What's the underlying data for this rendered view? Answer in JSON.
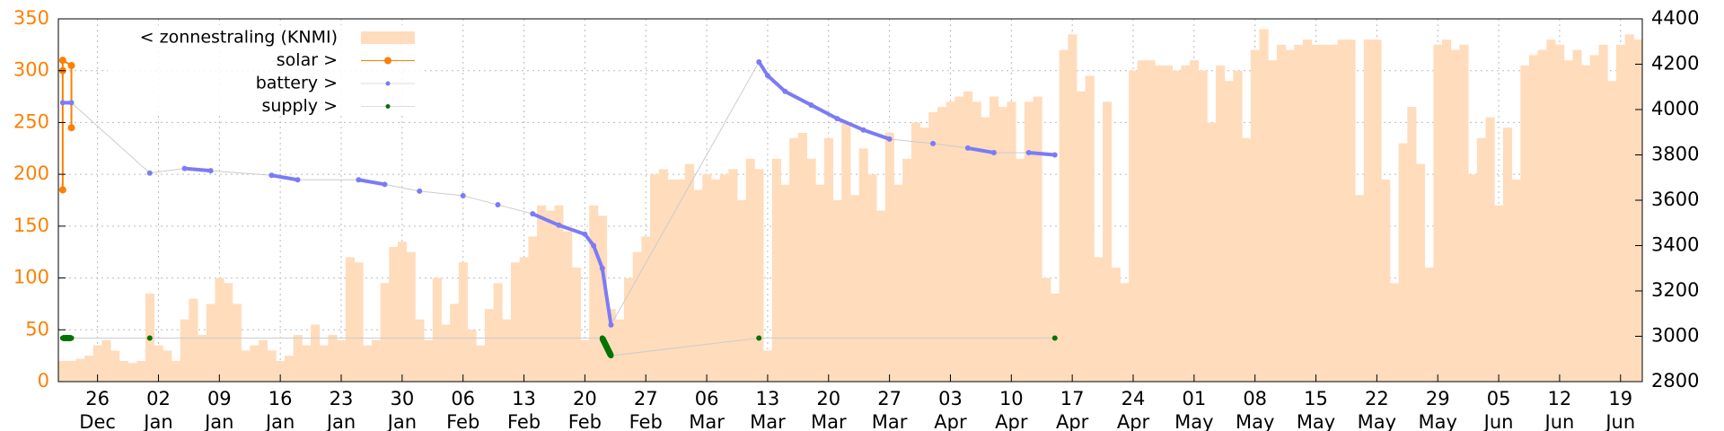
{
  "chart_data": {
    "type": "bar",
    "categories": [
      "22 Dec",
      "23 Dec",
      "24 Dec",
      "25 Dec",
      "26 Dec",
      "27 Dec",
      "28 Dec",
      "29 Dec",
      "30 Dec",
      "31 Dec",
      "01 Jan",
      "02 Jan",
      "03 Jan",
      "04 Jan",
      "05 Jan",
      "06 Jan",
      "07 Jan",
      "08 Jan",
      "09 Jan",
      "10 Jan",
      "11 Jan",
      "12 Jan",
      "13 Jan",
      "14 Jan",
      "15 Jan",
      "16 Jan",
      "17 Jan",
      "18 Jan",
      "19 Jan",
      "20 Jan",
      "21 Jan",
      "22 Jan",
      "23 Jan",
      "24 Jan",
      "25 Jan",
      "26 Jan",
      "27 Jan",
      "28 Jan",
      "29 Jan",
      "30 Jan",
      "31 Jan",
      "01 Feb",
      "02 Feb",
      "03 Feb",
      "04 Feb",
      "05 Feb",
      "06 Feb",
      "07 Feb",
      "08 Feb",
      "09 Feb",
      "10 Feb",
      "11 Feb",
      "12 Feb",
      "13 Feb",
      "14 Feb",
      "15 Feb",
      "16 Feb",
      "17 Feb",
      "18 Feb",
      "19 Feb",
      "20 Feb",
      "21 Feb",
      "22 Feb",
      "23 Feb",
      "24 Feb",
      "25 Feb",
      "26 Feb",
      "27 Feb",
      "28 Feb",
      "01 Mar",
      "02 Mar",
      "03 Mar",
      "04 Mar",
      "05 Mar",
      "06 Mar",
      "07 Mar",
      "08 Mar",
      "09 Mar",
      "10 Mar",
      "11 Mar",
      "12 Mar",
      "13 Mar",
      "14 Mar",
      "15 Mar",
      "16 Mar",
      "17 Mar",
      "18 Mar",
      "19 Mar",
      "20 Mar",
      "21 Mar",
      "22 Mar",
      "23 Mar",
      "24 Mar",
      "25 Mar",
      "26 Mar",
      "27 Mar",
      "28 Mar",
      "29 Mar",
      "30 Mar",
      "31 Mar",
      "01 Apr",
      "02 Apr",
      "03 Apr",
      "04 Apr",
      "05 Apr",
      "06 Apr",
      "07 Apr",
      "08 Apr",
      "09 Apr",
      "10 Apr",
      "11 Apr",
      "12 Apr",
      "13 Apr",
      "14 Apr",
      "15 Apr",
      "16 Apr",
      "17 Apr",
      "18 Apr",
      "19 Apr",
      "20 Apr",
      "21 Apr",
      "22 Apr",
      "23 Apr",
      "24 Apr",
      "25 Apr",
      "26 Apr",
      "27 Apr",
      "28 Apr",
      "29 Apr",
      "30 Apr",
      "01 May",
      "02 May",
      "03 May",
      "04 May",
      "05 May",
      "06 May",
      "07 May",
      "08 May",
      "09 May",
      "10 May",
      "11 May",
      "12 May",
      "13 May",
      "14 May",
      "15 May",
      "16 May",
      "17 May",
      "18 May",
      "19 May",
      "20 May",
      "21 May",
      "22 May",
      "23 May",
      "24 May",
      "25 May",
      "26 May",
      "27 May",
      "28 May",
      "29 May",
      "30 May",
      "31 May",
      "01 Jun",
      "02 Jun",
      "03 Jun",
      "04 Jun",
      "05 Jun",
      "06 Jun",
      "07 Jun",
      "08 Jun",
      "09 Jun",
      "10 Jun",
      "11 Jun",
      "12 Jun",
      "13 Jun",
      "14 Jun",
      "15 Jun",
      "16 Jun",
      "17 Jun",
      "18 Jun",
      "19 Jun",
      "20 Jun",
      "21 Jun"
    ],
    "series": [
      {
        "name": "< zonnestraling (KNMI)",
        "type": "bar",
        "color": "#ffdcbc",
        "values": [
          20,
          20,
          22,
          25,
          35,
          40,
          30,
          20,
          18,
          20,
          85,
          35,
          30,
          20,
          60,
          80,
          45,
          75,
          100,
          95,
          75,
          30,
          35,
          40,
          30,
          20,
          25,
          45,
          35,
          55,
          35,
          45,
          40,
          120,
          115,
          35,
          40,
          95,
          130,
          135,
          125,
          60,
          40,
          100,
          55,
          75,
          115,
          50,
          35,
          70,
          95,
          60,
          115,
          120,
          140,
          170,
          165,
          170,
          145,
          110,
          40,
          170,
          160,
          70,
          60,
          100,
          125,
          140,
          200,
          205,
          195,
          195,
          210,
          185,
          200,
          195,
          200,
          205,
          175,
          215,
          205,
          30,
          215,
          190,
          235,
          240,
          215,
          190,
          235,
          175,
          250,
          180,
          225,
          200,
          165,
          240,
          190,
          215,
          250,
          245,
          260,
          265,
          270,
          275,
          280,
          270,
          255,
          275,
          265,
          270,
          215,
          270,
          275,
          100,
          85,
          320,
          335,
          280,
          295,
          120,
          270,
          110,
          95,
          300,
          310,
          310,
          305,
          305,
          300,
          305,
          310,
          300,
          250,
          305,
          290,
          300,
          235,
          320,
          340,
          310,
          325,
          320,
          325,
          330,
          325,
          325,
          325,
          330,
          330,
          180,
          330,
          330,
          195,
          95,
          230,
          265,
          210,
          110,
          325,
          330,
          320,
          325,
          200,
          235,
          255,
          170,
          245,
          195,
          305,
          315,
          320,
          330,
          325,
          310,
          320,
          305,
          315,
          325,
          290,
          325,
          335,
          330
        ]
      },
      {
        "name": "solar >",
        "type": "line",
        "color": "#ff7f00",
        "x": [
          "22 Dec",
          "22 Dec",
          "22 Dec",
          "23 Dec",
          "23 Dec"
        ],
        "values": [
          185,
          300,
          310,
          305,
          245
        ]
      },
      {
        "name": "battery >",
        "type": "scatter",
        "color": "#7b7bf7",
        "axis": "y2",
        "x": [
          "22 Dec",
          "23 Dec",
          "01 Jan",
          "05 Jan",
          "08 Jan",
          "15 Jan",
          "18 Jan",
          "25 Jan",
          "28 Jan",
          "01 Feb",
          "06 Feb",
          "10 Feb",
          "14 Feb",
          "17 Feb",
          "20 Feb",
          "21 Feb",
          "22 Feb",
          "23 Feb",
          "12 Mar",
          "13 Mar",
          "15 Mar",
          "18 Mar",
          "21 Mar",
          "24 Mar",
          "27 Mar",
          "01 Apr",
          "05 Apr",
          "08 Apr",
          "12 Apr",
          "15 Apr"
        ],
        "values": [
          4030,
          4030,
          3720,
          3740,
          3730,
          3710,
          3690,
          3690,
          3670,
          3640,
          3620,
          3580,
          3540,
          3490,
          3450,
          3400,
          3300,
          3050,
          4210,
          4150,
          4080,
          4020,
          3960,
          3910,
          3870,
          3850,
          3830,
          3810,
          3810,
          3800
        ]
      },
      {
        "name": "supply >",
        "type": "scatter",
        "color": "#007400",
        "x": [
          "22 Dec",
          "23 Dec",
          "01 Jan",
          "22 Feb",
          "23 Feb",
          "12 Mar",
          "15 Apr"
        ],
        "values": [
          42,
          42,
          42,
          42,
          25,
          42,
          42
        ]
      }
    ],
    "ylim": [
      0,
      350
    ],
    "yticks": [
      0,
      50,
      100,
      150,
      200,
      250,
      300,
      350
    ],
    "y2lim": [
      2800,
      4400
    ],
    "y2ticks": [
      2800,
      3000,
      3200,
      3400,
      3600,
      3800,
      4000,
      4200,
      4400
    ],
    "xticks": [
      "26 Dec",
      "02 Jan",
      "09 Jan",
      "16 Jan",
      "23 Jan",
      "30 Jan",
      "06 Feb",
      "13 Feb",
      "20 Feb",
      "27 Feb",
      "06 Mar",
      "13 Mar",
      "20 Mar",
      "27 Mar",
      "03 Apr",
      "10 Apr",
      "17 Apr",
      "24 Apr",
      "01 May",
      "08 May",
      "15 May",
      "22 May",
      "29 May",
      "05 Jun",
      "12 Jun",
      "19 Jun"
    ],
    "ytick_color": "#ff7f00",
    "grid": true,
    "legend": "upper left"
  }
}
